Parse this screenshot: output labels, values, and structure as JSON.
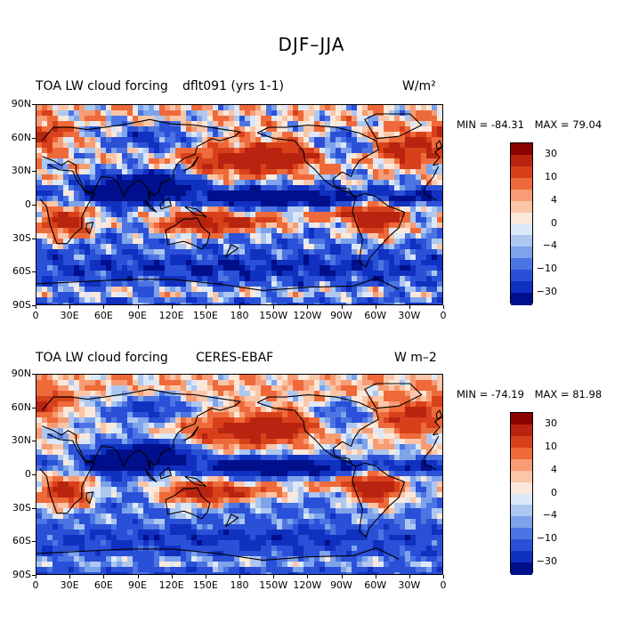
{
  "figure_title": "DJF–JJA",
  "panels": [
    {
      "left_title": "TOA LW cloud forcing",
      "center_title": "dflt091 (yrs 1-1)",
      "unit_label": "W/m²",
      "min_label": "MIN = -84.31",
      "max_label": "MAX =  79.04",
      "min_value": -84.31,
      "max_value": 79.04
    },
    {
      "left_title": "TOA LW cloud forcing",
      "center_title": "CERES-EBAF",
      "unit_label": "W m–2",
      "min_label": "MIN = -74.19",
      "max_label": "MAX =  81.98",
      "min_value": -74.19,
      "max_value": 81.98
    }
  ],
  "lat_ticks": [
    "90N",
    "60N",
    "30N",
    "0",
    "30S",
    "60S",
    "90S"
  ],
  "lon_ticks": [
    "0",
    "30E",
    "60E",
    "90E",
    "120E",
    "150E",
    "180",
    "150W",
    "120W",
    "90W",
    "60W",
    "30W",
    "0"
  ],
  "colorbar_tick_labels": [
    "30",
    "10",
    "4",
    "0",
    "−4",
    "−10",
    "−30"
  ],
  "colorbar_levels": [
    30,
    10,
    4,
    0,
    -4,
    -10,
    -30
  ],
  "colors": {
    "scale_top_to_bottom": [
      "#8b0000",
      "#b8240f",
      "#d8401c",
      "#ee6a3a",
      "#f79c74",
      "#fbc6a8",
      "#fbe8da",
      "#dce8f7",
      "#aec7f0",
      "#7ea3ea",
      "#4c74e2",
      "#2a50d8",
      "#1030c0",
      "#000f8c"
    ]
  }
}
